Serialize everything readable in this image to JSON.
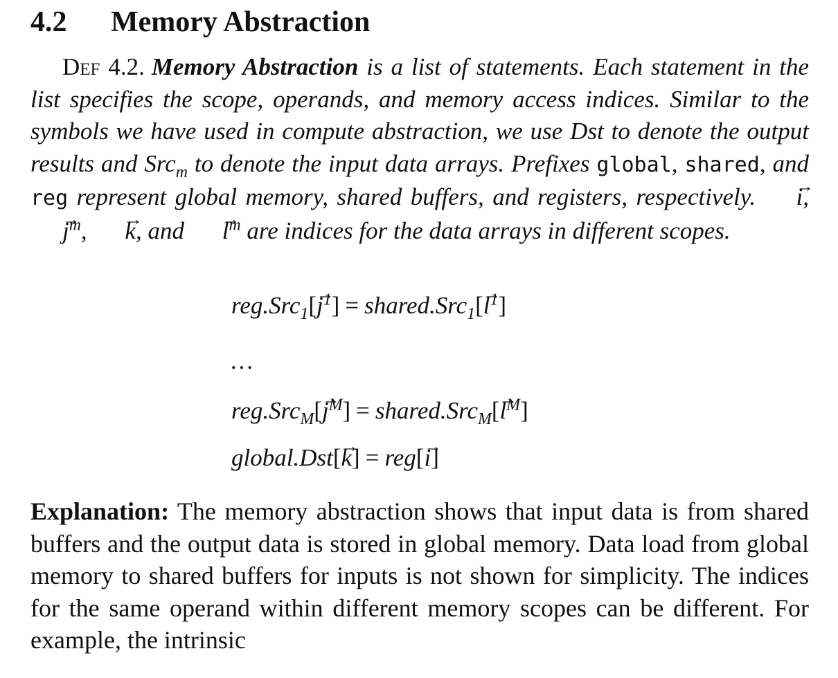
{
  "section": {
    "number": "4.2",
    "title": "Memory Abstraction"
  },
  "definition": {
    "label": "Def",
    "number": "4.2.",
    "term": "Memory Abstraction",
    "text_1": " is a list of statements. Each statement in the list specifies the scope, operands, and memory access indices. Similar to the symbols we have used in compute abstraction, we use Dst to denote the output results and Src",
    "sub_m": "m",
    "text_2": " to denote the input data arrays. Prefixes ",
    "prefix_global": "global",
    "sep_1": ", ",
    "prefix_shared": "shared",
    "sep_2": ", and ",
    "prefix_reg": "reg",
    "text_3": " represent global memory, shared buffers, and registers, respectively. ",
    "idx_i": "i",
    "sep_3": ", ",
    "idx_j": "j",
    "sup_m1": "m",
    "sep_4": ", ",
    "idx_k": "k",
    "sep_5": ", and ",
    "idx_l": "l",
    "sup_m2": "m",
    "text_4": " are indices for the data arrays in different scopes."
  },
  "equations": {
    "eq1": {
      "lhs": "reg.Src",
      "lhs_sub": "1",
      "lhs_idx": "j",
      "lhs_sup": "1",
      "op": "=",
      "rhs": "shared.Src",
      "rhs_sub": "1",
      "rhs_idx": "l",
      "rhs_sup": "1"
    },
    "ellipsis": "…",
    "eq2": {
      "lhs": "reg.Src",
      "lhs_sub": "M",
      "lhs_idx": "j",
      "lhs_sup": "M",
      "op": "=",
      "rhs": "shared.Src",
      "rhs_sub": "M",
      "rhs_idx": "l",
      "rhs_sup": "M"
    },
    "eq3": {
      "lhs": "global.Dst",
      "lhs_idx": "k",
      "op": "=",
      "rhs": "reg",
      "rhs_idx": "i"
    }
  },
  "explanation": {
    "lead": "Explanation:",
    "body": " The memory abstraction shows that input data is from shared buffers and the output data is stored in global memory. Data load from global memory to shared buffers for inputs is not shown for simplicity. The indices for the same operand within different memory scopes can be different. For example, the intrinsic"
  }
}
